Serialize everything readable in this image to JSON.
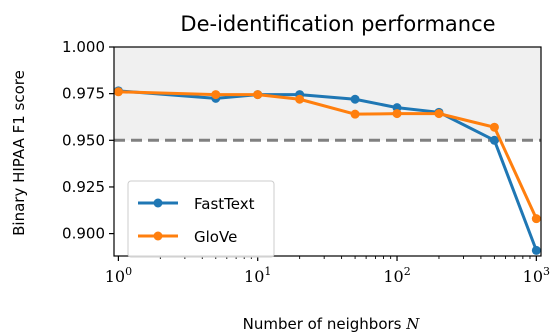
{
  "chart_data": {
    "type": "line",
    "title": "De-identification performance",
    "xlabel": "Number of neighbors",
    "xlabel_var": "N",
    "ylabel": "Binary HIPAA F1 score",
    "xscale": "log",
    "xlim": [
      0.93,
      1080
    ],
    "ylim": [
      0.888,
      1.0
    ],
    "x_ticks": [
      {
        "value": 1,
        "base": "10",
        "exp": "0"
      },
      {
        "value": 10,
        "base": "10",
        "exp": "1"
      },
      {
        "value": 100,
        "base": "10",
        "exp": "2"
      },
      {
        "value": 1000,
        "base": "10",
        "exp": "3"
      }
    ],
    "y_ticks": [
      {
        "value": 0.9,
        "label": "0.900"
      },
      {
        "value": 0.925,
        "label": "0.925"
      },
      {
        "value": 0.95,
        "label": "0.950"
      },
      {
        "value": 0.975,
        "label": "0.975"
      },
      {
        "value": 1.0,
        "label": "1.000"
      }
    ],
    "x": [
      1,
      5,
      10,
      20,
      50,
      100,
      200,
      500,
      1000
    ],
    "series": [
      {
        "name": "FastText",
        "color": "#1f77b4",
        "values": [
          0.9765,
          0.9725,
          0.9745,
          0.9745,
          0.972,
          0.9675,
          0.965,
          0.95,
          0.891
        ]
      },
      {
        "name": "GloVe",
        "color": "#ff7f0e",
        "values": [
          0.976,
          0.9745,
          0.9745,
          0.972,
          0.964,
          0.9643,
          0.9643,
          0.957,
          0.908
        ]
      }
    ],
    "reference_line": {
      "y": 0.95,
      "style": "dashed",
      "color": "#808080"
    },
    "shaded_region": {
      "y_from": 0.95,
      "y_to": 1.0,
      "color": "#f0f0f0"
    },
    "grid": false,
    "legend_position": "lower-left"
  }
}
